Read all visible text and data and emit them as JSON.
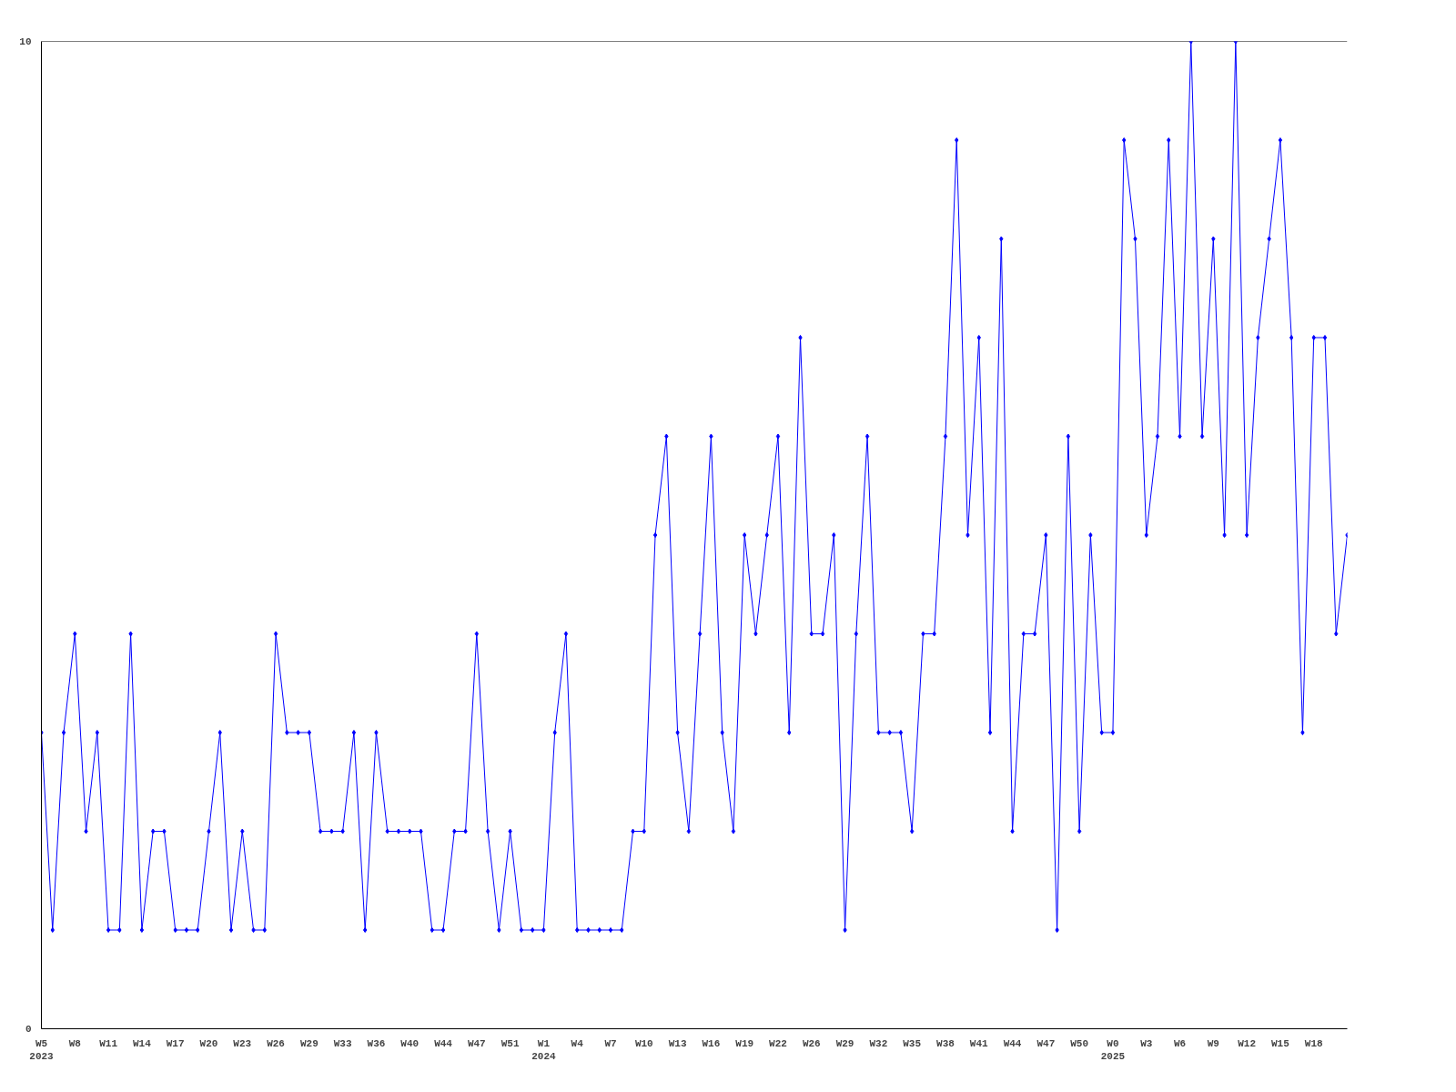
{
  "chart_data": {
    "type": "line",
    "categories": [
      "W5\n2023",
      null,
      null,
      "W8",
      null,
      null,
      "W11",
      null,
      null,
      "W14",
      null,
      null,
      "W17",
      null,
      null,
      "W20",
      null,
      null,
      "W23",
      null,
      null,
      "W26",
      null,
      null,
      "W29",
      null,
      null,
      "W33",
      null,
      null,
      "W36",
      null,
      null,
      "W40",
      null,
      null,
      "W44",
      null,
      null,
      "W47",
      null,
      null,
      "W51",
      null,
      null,
      "W1\n2024",
      null,
      null,
      "W4",
      null,
      null,
      "W7",
      null,
      null,
      "W10",
      null,
      null,
      "W13",
      null,
      null,
      "W16",
      null,
      null,
      "W19",
      null,
      null,
      "W22",
      null,
      null,
      "W26",
      null,
      null,
      "W29",
      null,
      null,
      "W32",
      null,
      null,
      "W35",
      null,
      null,
      "W38",
      null,
      null,
      "W41",
      null,
      null,
      "W44",
      null,
      null,
      "W47",
      null,
      null,
      "W50",
      null,
      null,
      "W0\n2025",
      null,
      null,
      "W3",
      null,
      null,
      "W6",
      null,
      null,
      "W9",
      null,
      null,
      "W12",
      null,
      null,
      "W15",
      null,
      null,
      "W18",
      null,
      null,
      null
    ],
    "series": [
      {
        "color": "#0000ff",
        "values": [
          3,
          1,
          3,
          4,
          2,
          3,
          1,
          1,
          4,
          1,
          2,
          2,
          1,
          1,
          1,
          2,
          3,
          1,
          2,
          1,
          1,
          4,
          3,
          3,
          3,
          2,
          2,
          2,
          3,
          1,
          3,
          2,
          2,
          2,
          2,
          1,
          1,
          2,
          2,
          4,
          2,
          1,
          2,
          1,
          1,
          1,
          3,
          4,
          1,
          1,
          1,
          1,
          1,
          2,
          2,
          5,
          6,
          3,
          2,
          4,
          6,
          3,
          2,
          5,
          4,
          5,
          6,
          3,
          7,
          4,
          4,
          5,
          1,
          4,
          6,
          3,
          3,
          3,
          2,
          4,
          4,
          6,
          9,
          5,
          7,
          3,
          8,
          2,
          4,
          4,
          5,
          1,
          6,
          2,
          5,
          3,
          3,
          9,
          8,
          5,
          6,
          9,
          6,
          10,
          6,
          8,
          5,
          10,
          5,
          7,
          8,
          9,
          7,
          3,
          7,
          7,
          4,
          5
        ]
      }
    ],
    "ylim": [
      0,
      10
    ],
    "yticks": [
      0,
      10
    ],
    "grid": false,
    "marker": "diamond",
    "line_style": "solid"
  }
}
